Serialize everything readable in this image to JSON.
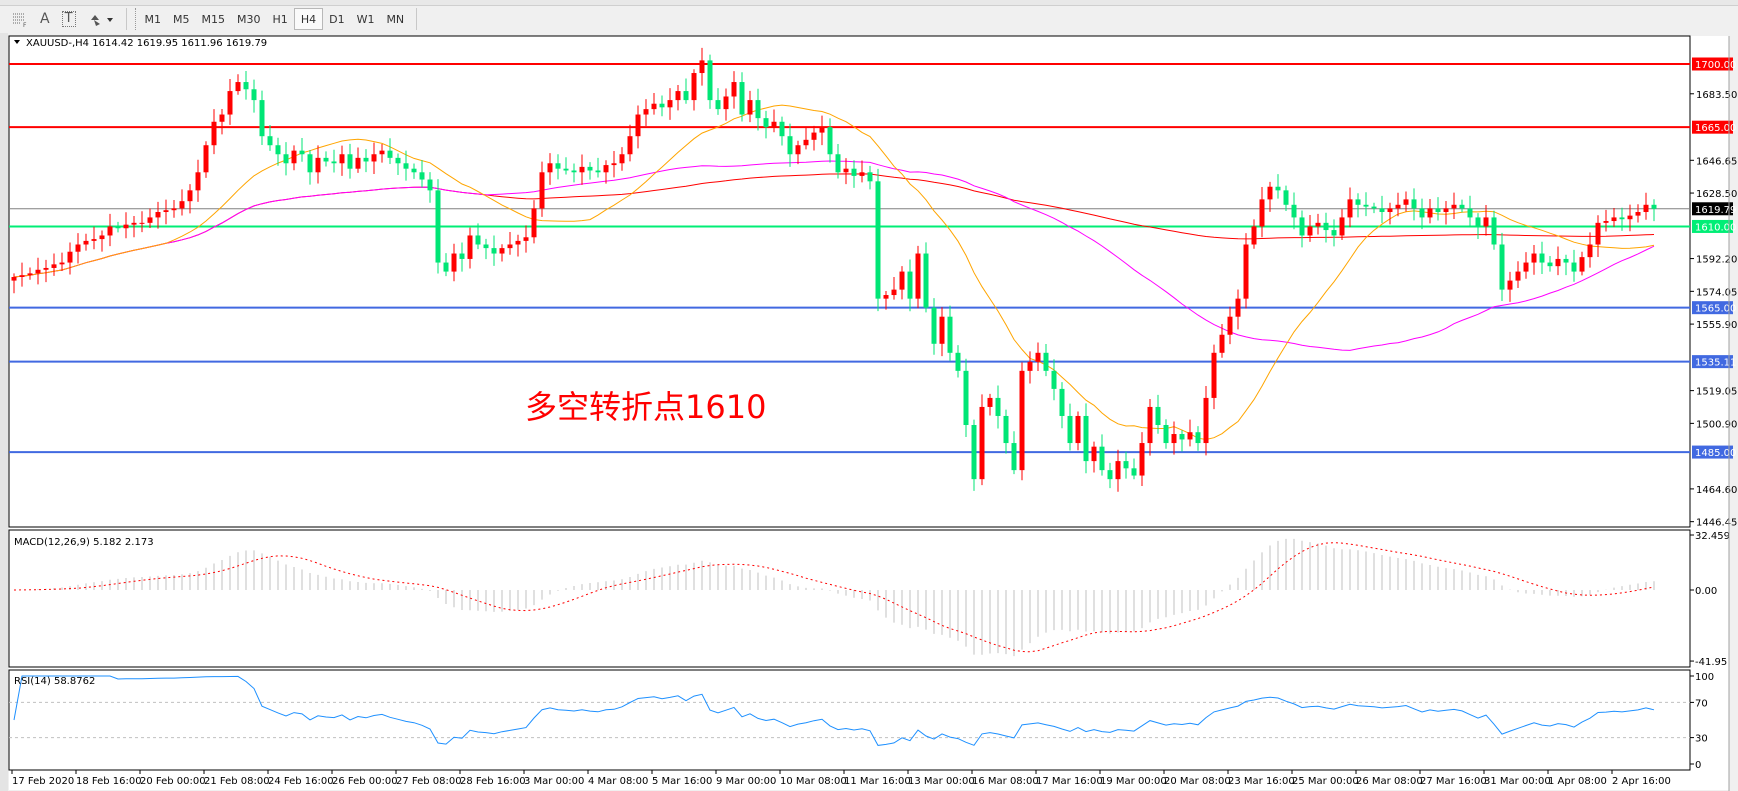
{
  "toolbar": {
    "tools": [
      {
        "label": "",
        "icon": "grid-properties-icon"
      },
      {
        "label": "A",
        "icon": "text-icon"
      },
      {
        "label": "T",
        "icon": "text-label-icon"
      },
      {
        "label": "",
        "icon": "arrows-icon"
      }
    ],
    "timeframes": [
      "M1",
      "M5",
      "M15",
      "M30",
      "H1",
      "H4",
      "D1",
      "W1",
      "MN"
    ],
    "active_timeframe": "H4"
  },
  "chart_data": {
    "type": "candlestick",
    "title": "XAUUSD-,H4",
    "ohlc_header": "1614.42 1619.95 1611.96 1619.79",
    "colors": {
      "bull": "#ff0000",
      "bear": "#00e676",
      "ma_fast": "#ffa500",
      "ma_mid": "#ff00ff",
      "ma_slow": "#ff0000",
      "rsi": "#1e90ff",
      "macd_hist": "#c0c0c0",
      "macd_signal": "#ff0000"
    },
    "closes": [
      1582,
      1583,
      1584,
      1586,
      1587,
      1589,
      1590,
      1596,
      1600,
      1602,
      1603,
      1605,
      1610,
      1609,
      1611,
      1612,
      1612,
      1615,
      1618,
      1619,
      1620,
      1624,
      1630,
      1640,
      1655,
      1668,
      1672,
      1685,
      1690,
      1686,
      1680,
      1660,
      1655,
      1650,
      1645,
      1652,
      1650,
      1640,
      1648,
      1646,
      1645,
      1650,
      1642,
      1648,
      1646,
      1650,
      1652,
      1648,
      1645,
      1642,
      1640,
      1636,
      1630,
      1590,
      1585,
      1595,
      1592,
      1605,
      1600,
      1598,
      1595,
      1598,
      1600,
      1602,
      1604,
      1620,
      1640,
      1645,
      1642,
      1641,
      1640,
      1643,
      1641,
      1640,
      1644,
      1645,
      1650,
      1660,
      1672,
      1675,
      1678,
      1676,
      1680,
      1685,
      1680,
      1695,
      1702,
      1680,
      1675,
      1682,
      1690,
      1672,
      1680,
      1670,
      1665,
      1668,
      1660,
      1650,
      1655,
      1658,
      1662,
      1665,
      1650,
      1640,
      1642,
      1638,
      1640,
      1635,
      1570,
      1572,
      1575,
      1585,
      1570,
      1595,
      1565,
      1545,
      1560,
      1540,
      1530,
      1500,
      1470,
      1510,
      1515,
      1505,
      1490,
      1475,
      1530,
      1535,
      1540,
      1530,
      1520,
      1505,
      1490,
      1505,
      1480,
      1488,
      1475,
      1470,
      1480,
      1476,
      1472,
      1490,
      1510,
      1500,
      1490,
      1495,
      1492,
      1496,
      1490,
      1515,
      1540,
      1550,
      1560,
      1570,
      1600,
      1610,
      1625,
      1632,
      1630,
      1622,
      1615,
      1605,
      1610,
      1612,
      1608,
      1605,
      1615,
      1625,
      1622,
      1621,
      1620,
      1618,
      1620,
      1622,
      1625,
      1620,
      1615,
      1620,
      1618,
      1620,
      1622,
      1620,
      1615,
      1610,
      1615,
      1600,
      1575,
      1580,
      1585,
      1590,
      1595,
      1590,
      1588,
      1592,
      1590,
      1585,
      1593,
      1600,
      1612,
      1613,
      1615,
      1614,
      1616,
      1618,
      1622,
      1619.79
    ],
    "price_axis": {
      "ylim": [
        1444,
        1715.5
      ],
      "ticks": [
        "1683.50",
        "1646.65",
        "1628.50",
        "1592.20",
        "1574.05",
        "1555.90",
        "1519.05",
        "1500.90",
        "1464.60",
        "1446.45"
      ]
    },
    "horizontal_lines": [
      {
        "label": "1700.00",
        "value": 1700.0,
        "color": "#ff0000",
        "text_color": "#ffffff"
      },
      {
        "label": "1665.00",
        "value": 1665.0,
        "color": "#ff0000",
        "text_color": "#ffffff"
      },
      {
        "label": "1619.79",
        "value": 1619.79,
        "color": "#808080",
        "box_color": "#000000",
        "text_color": "#ffffff"
      },
      {
        "label": "1610.00",
        "value": 1610.0,
        "color": "#00ee76",
        "text_color": "#ffffff"
      },
      {
        "label": "1565.00",
        "value": 1565.0,
        "color": "#4169e1",
        "text_color": "#ffffff"
      },
      {
        "label": "1535.11",
        "value": 1535.11,
        "color": "#4169e1",
        "text_color": "#ffffff"
      },
      {
        "label": "1485.00",
        "value": 1485.0,
        "color": "#4169e1",
        "text_color": "#ffffff"
      }
    ],
    "annotation": {
      "text": "多空转折点1610",
      "color": "#ff0000"
    },
    "macd": {
      "label": "MACD(12,26,9) 5.182 2.173",
      "ylim": [
        -41.95,
        32.459
      ],
      "ticks": [
        "32.459",
        "0.00",
        "-41.95"
      ]
    },
    "rsi": {
      "label": "RSI(14) 58.8762",
      "ylim": [
        0,
        100
      ],
      "ticks": [
        "100",
        "70",
        "30",
        "0"
      ],
      "levels": [
        70,
        30
      ]
    },
    "x_labels": [
      "17 Feb 2020",
      "18 Feb 16:00",
      "20 Feb 00:00",
      "21 Feb 08:00",
      "24 Feb 16:00",
      "26 Feb 00:00",
      "27 Feb 08:00",
      "28 Feb 16:00",
      "3 Mar 00:00",
      "4 Mar 08:00",
      "5 Mar 16:00",
      "9 Mar 00:00",
      "10 Mar 08:00",
      "11 Mar 16:00",
      "13 Mar 00:00",
      "16 Mar 08:00",
      "17 Mar 16:00",
      "19 Mar 00:00",
      "20 Mar 08:00",
      "23 Mar 16:00",
      "25 Mar 00:00",
      "26 Mar 08:00",
      "27 Mar 16:00",
      "31 Mar 00:00",
      "1 Apr 08:00",
      "2 Apr 16:00"
    ]
  }
}
